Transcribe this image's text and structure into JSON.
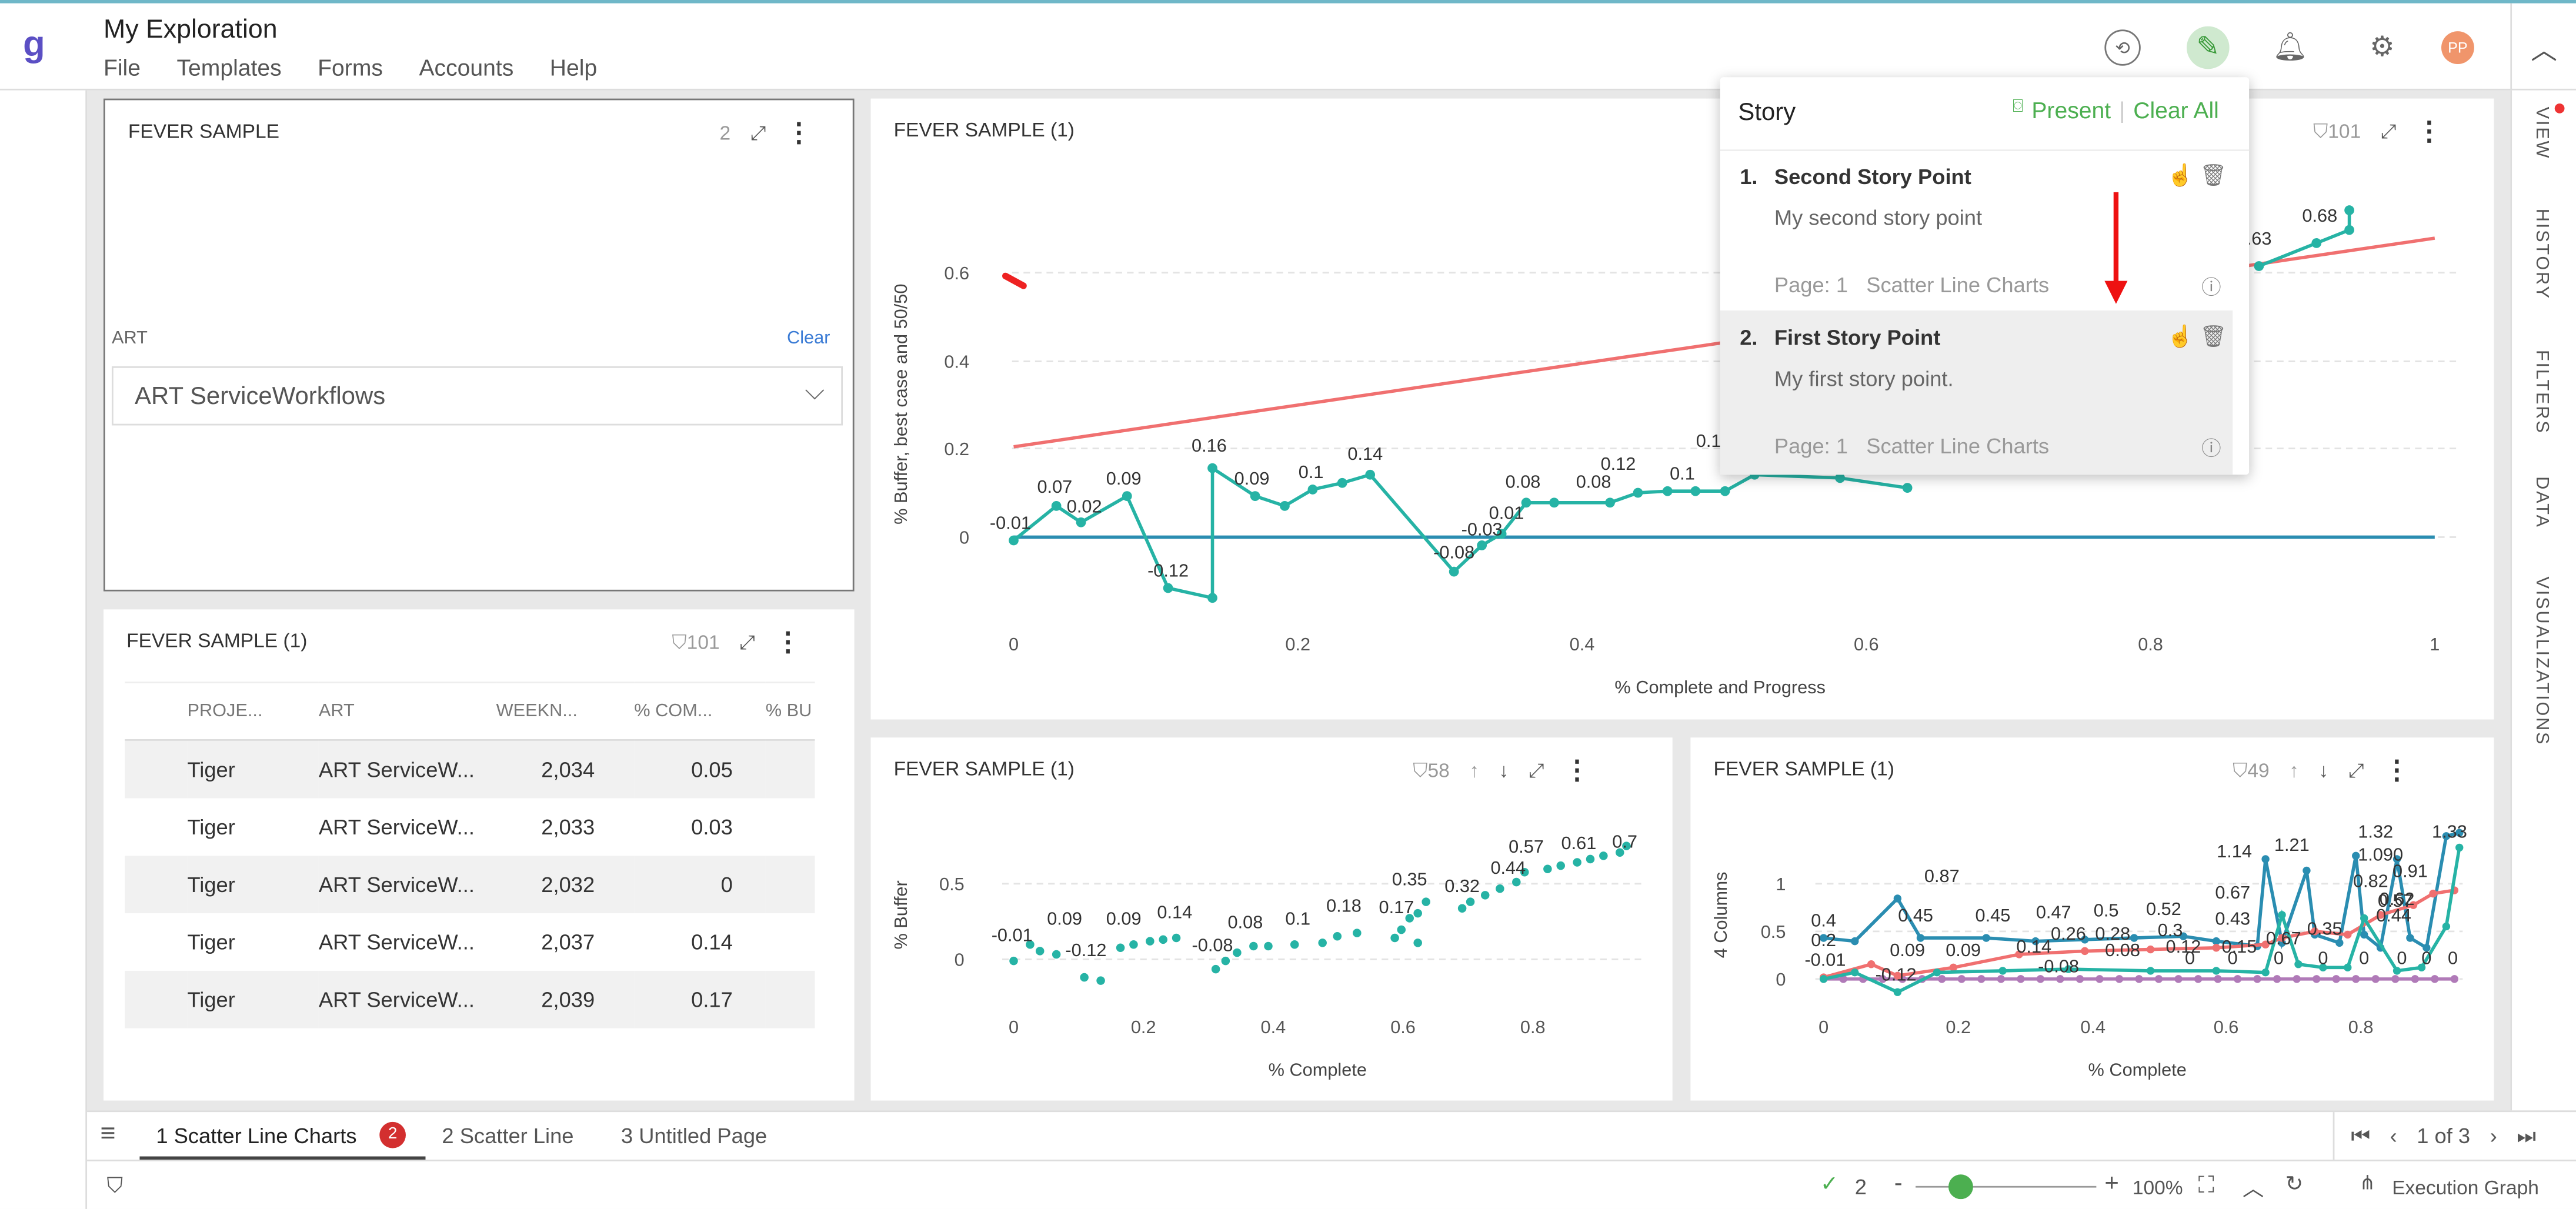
{
  "app": {
    "logo": "g",
    "title": "My Exploration",
    "menu": [
      "File",
      "Templates",
      "Forms",
      "Accounts",
      "Help"
    ],
    "avatar": "PP"
  },
  "rail": {
    "items": [
      "VIEW",
      "HISTORY",
      "FILTERS",
      "DATA",
      "VISUALIZATIONS"
    ]
  },
  "filter_panel": {
    "title": "FEVER SAMPLE",
    "count": "2",
    "label": "ART",
    "clear": "Clear",
    "value": "ART ServiceWorkflows"
  },
  "table_panel": {
    "title": "FEVER SAMPLE (1)",
    "count": "101",
    "columns": [
      "PROJE...",
      "ART",
      "WEEKN...",
      "% COM...",
      "% BU"
    ],
    "rows": [
      [
        "Tiger",
        "ART ServiceW...",
        "2,034",
        "0.05"
      ],
      [
        "Tiger",
        "ART ServiceW...",
        "2,033",
        "0.03"
      ],
      [
        "Tiger",
        "ART ServiceW...",
        "2,032",
        "0"
      ],
      [
        "Tiger",
        "ART ServiceW...",
        "2,037",
        "0.14"
      ],
      [
        "Tiger",
        "ART ServiceW...",
        "2,039",
        "0.17"
      ]
    ]
  },
  "main_chart": {
    "title": "FEVER SAMPLE (1)",
    "count": "101",
    "ylabel": "% Buffer, best case and 50/50",
    "xlabel": "% Complete and Progress",
    "yticks": [
      "0.6",
      "0.4",
      "0.2",
      "0"
    ],
    "xticks": [
      "0",
      "0.2",
      "0.4",
      "0.6",
      "0.8",
      "1"
    ],
    "labels": [
      "-0.01",
      "0.07",
      "0.02",
      "0.09",
      "-0.12",
      "0.16",
      "0.09",
      "0.1",
      "0.14",
      "-0.08",
      "-0.03",
      "0.01",
      "0.08",
      "0.08",
      "0.12",
      "0.1",
      "0.1",
      "0.63",
      "0.68"
    ]
  },
  "story": {
    "title": "Story",
    "present": "Present",
    "clear_all": "Clear All",
    "points": [
      {
        "num": "1.",
        "title": "Second Story Point",
        "desc": "My second story point",
        "page": "Page: 1",
        "chart": "Scatter Line Charts"
      },
      {
        "num": "2.",
        "title": "First Story Point",
        "desc": "My first story point.",
        "page": "Page: 1",
        "chart": "Scatter Line Charts"
      }
    ]
  },
  "chart2": {
    "title": "FEVER SAMPLE (1)",
    "count": "58",
    "ylabel": "% Buffer",
    "xlabel": "% Complete",
    "yticks": [
      "0.5",
      "0"
    ],
    "xticks": [
      "0",
      "0.2",
      "0.4",
      "0.6",
      "0.8"
    ],
    "labels": [
      "-0.01",
      "0.09",
      "-0.12",
      "0.09",
      "0.14",
      "-0.08",
      "0.08",
      "0.1",
      "0.18",
      "0.17",
      "0.35",
      "0.32",
      "0.44",
      "0.57",
      "0.61",
      "0.7"
    ]
  },
  "chart3": {
    "title": "FEVER SAMPLE (1)",
    "count": "49",
    "ylabel": "4 Columns",
    "xlabel": "% Complete",
    "yticks": [
      "1",
      "0.5",
      "0"
    ],
    "xticks": [
      "0",
      "0.2",
      "0.4",
      "0.6",
      "0.8"
    ],
    "labels": [
      "0.87",
      "0.4",
      "0.2",
      "-0.01",
      "0.45",
      "0.09",
      "-0.12",
      "0.09",
      "0.45",
      "0.14",
      "0.47",
      "0.26",
      "-0.08",
      "0.5",
      "0.28",
      "0.08",
      "0.52",
      "0.3",
      "0.12",
      "1.14",
      "0.67",
      "0.43",
      "0.15",
      "1.21",
      "0.67",
      "0.35",
      "1.32",
      "1.090",
      "0.82",
      "0.57",
      "0.91",
      "0.62",
      "0.44",
      "1.33",
      "0",
      "0",
      "0",
      "0",
      "0",
      "0",
      "0",
      "0"
    ]
  },
  "pages": {
    "tabs": [
      "1 Scatter Line Charts",
      "2 Scatter Line",
      "3 Untitled Page"
    ],
    "badge": "2",
    "pager": "1 of 3"
  },
  "status": {
    "checks": "2",
    "zoom": "100%",
    "exec": "Execution Graph"
  }
}
